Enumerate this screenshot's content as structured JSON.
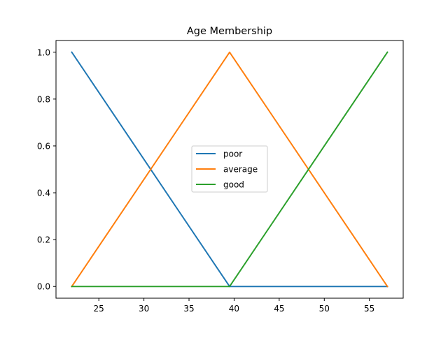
{
  "chart_data": {
    "type": "line",
    "title": "Age Membership",
    "xlabel": "",
    "ylabel": "",
    "xlim": [
      20.25,
      58.75
    ],
    "ylim": [
      -0.05,
      1.05
    ],
    "xticks": [
      25,
      30,
      35,
      40,
      45,
      50,
      55
    ],
    "yticks": [
      0.0,
      0.2,
      0.4,
      0.6,
      0.8,
      1.0
    ],
    "xtick_labels": [
      "25",
      "30",
      "35",
      "40",
      "45",
      "50",
      "55"
    ],
    "ytick_labels": [
      "0.0",
      "0.2",
      "0.4",
      "0.6",
      "0.8",
      "1.0"
    ],
    "grid": false,
    "legend_position": "center",
    "series": [
      {
        "name": "poor",
        "color": "#1f77b4",
        "x": [
          22,
          39.5,
          57
        ],
        "y": [
          1.0,
          0.0,
          0.0
        ]
      },
      {
        "name": "average",
        "color": "#ff7f0e",
        "x": [
          22,
          39.5,
          57
        ],
        "y": [
          0.0,
          1.0,
          0.0
        ]
      },
      {
        "name": "good",
        "color": "#2ca02c",
        "x": [
          22,
          39.5,
          57
        ],
        "y": [
          0.0,
          0.0,
          1.0
        ]
      }
    ]
  }
}
